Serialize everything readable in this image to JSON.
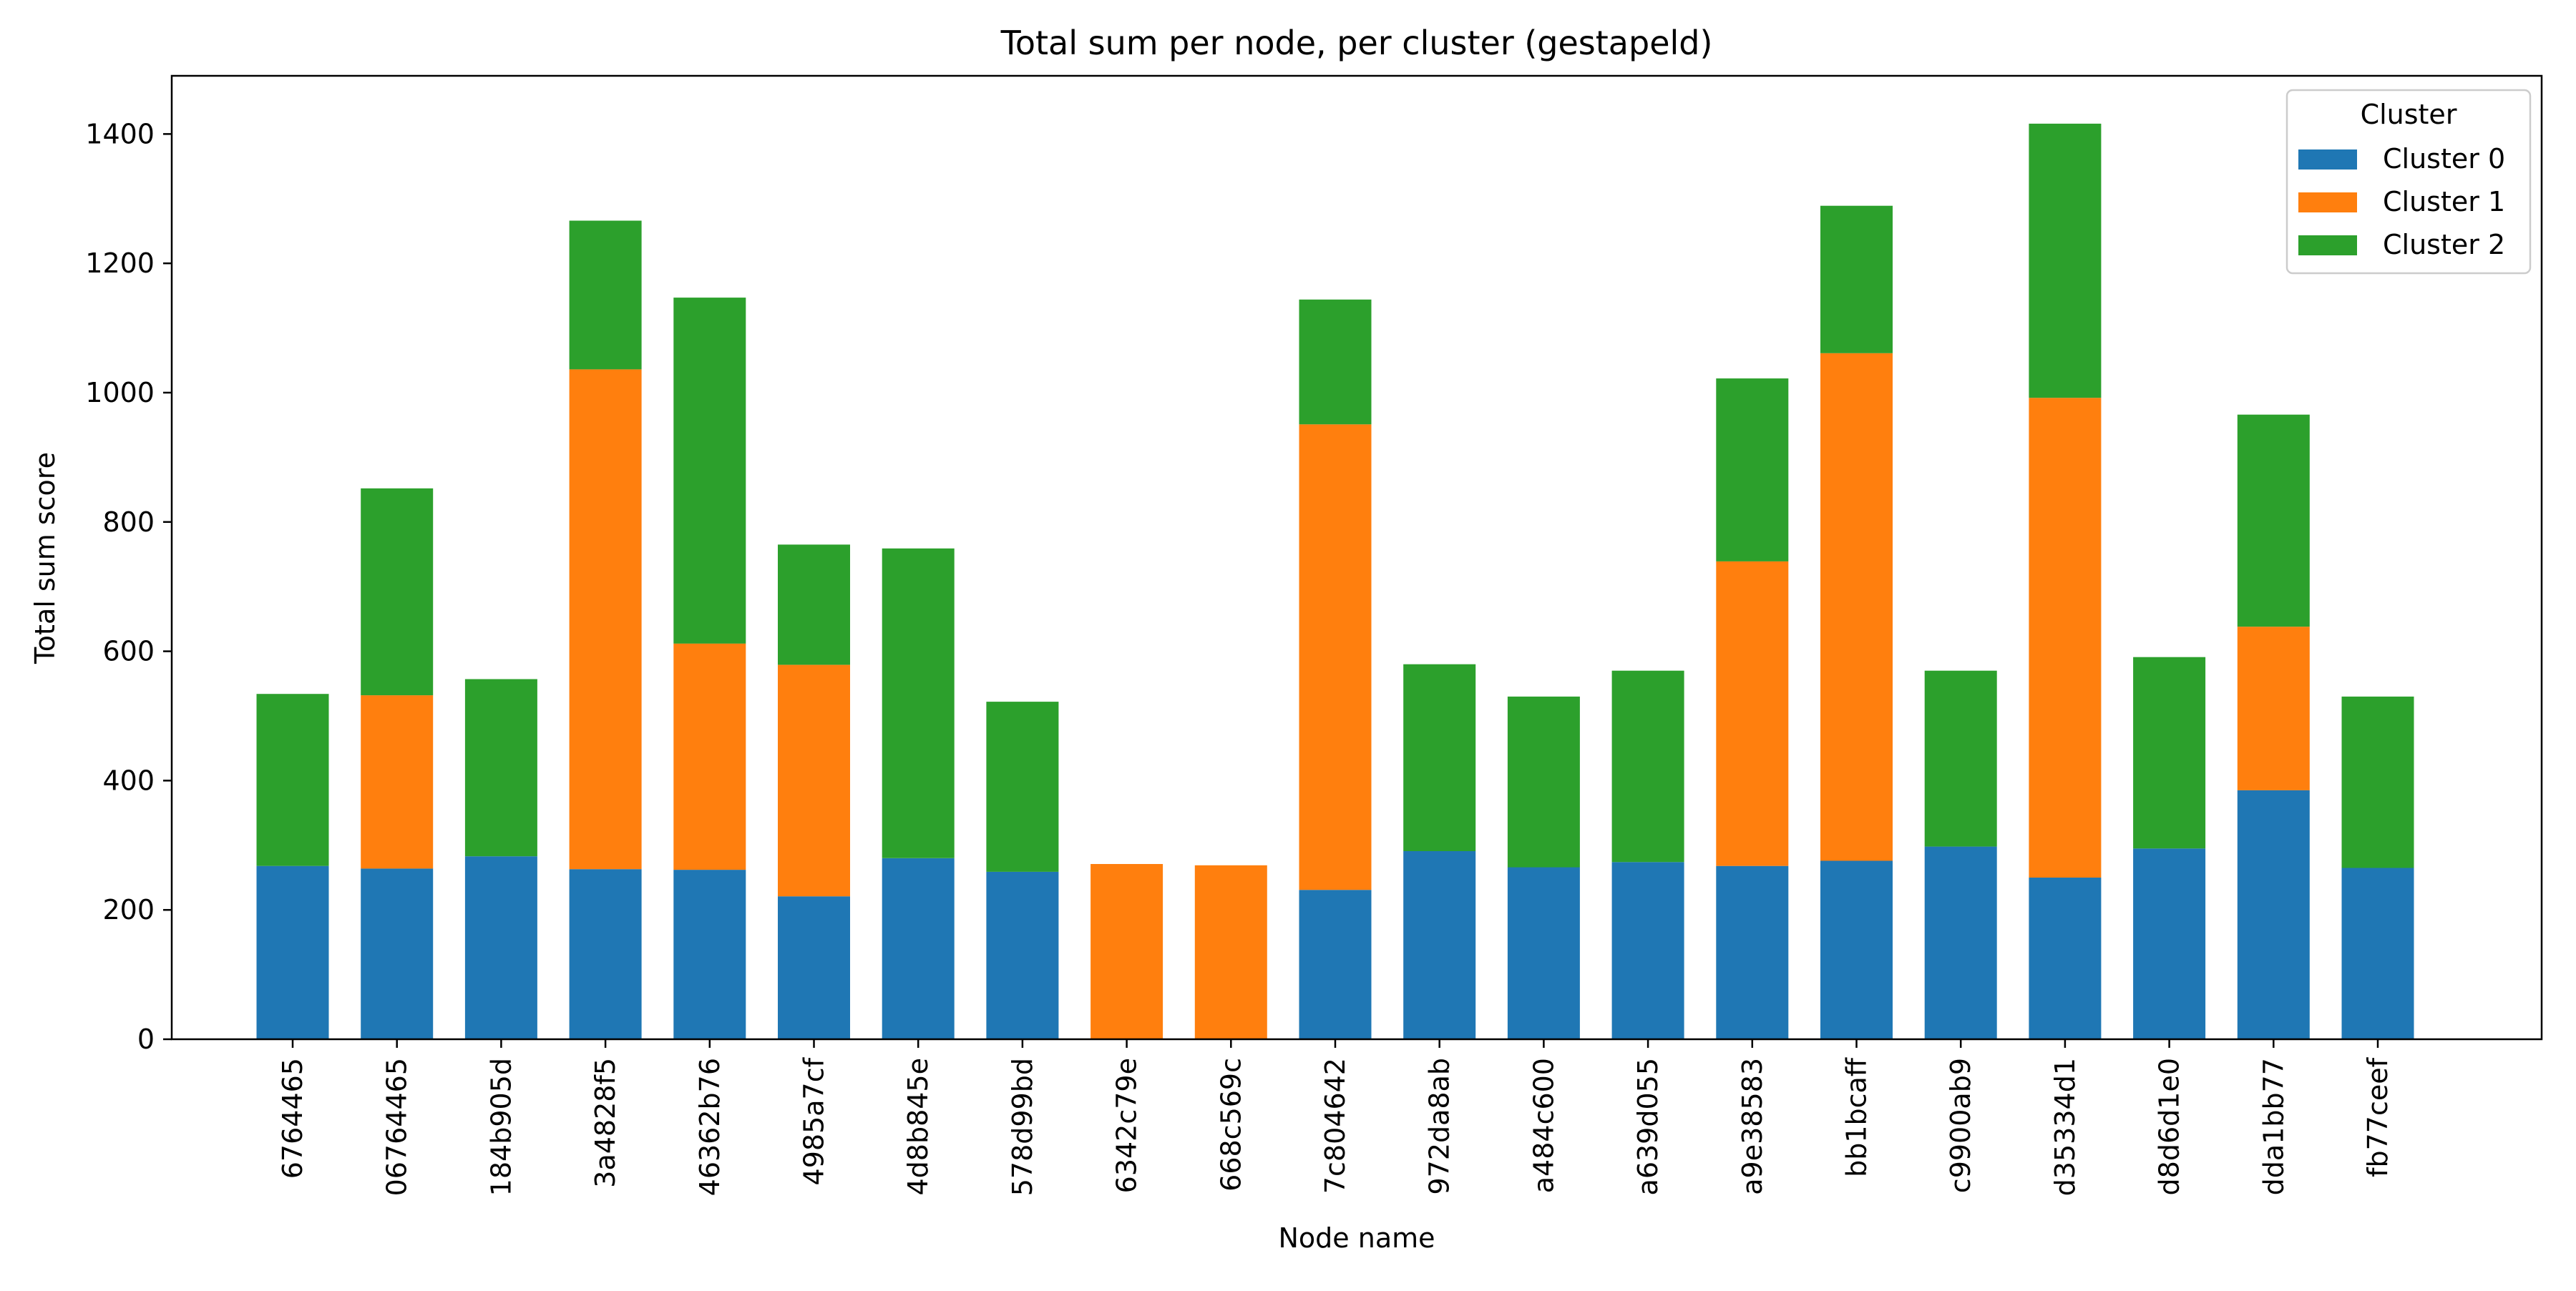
{
  "chart_data": {
    "type": "bar",
    "stacked": true,
    "title": "Total sum per node, per cluster (gestapeld)",
    "xlabel": "Node name",
    "ylabel": "Total sum score",
    "ylim": [
      0,
      1490
    ],
    "yticks": [
      0,
      200,
      400,
      600,
      800,
      1000,
      1200,
      1400
    ],
    "grid": false,
    "legend": {
      "title": "Cluster",
      "position": "top-right"
    },
    "categories": [
      "6764465",
      "06764465",
      "184b905d",
      "3a4828f5",
      "46362b76",
      "4985a7cf",
      "4d8b845e",
      "578d99bd",
      "6342c79e",
      "668c569c",
      "7c804642",
      "972da8ab",
      "a484c600",
      "a639d055",
      "a9e38583",
      "bb1bcaff",
      "c9900ab9",
      "d35334d1",
      "d8d6d1e0",
      "dda1bb77",
      "fb77ceef"
    ],
    "series": [
      {
        "name": "Cluster 0",
        "color": "#1f77b4",
        "values": [
          268,
          264,
          283,
          263,
          262,
          221,
          280,
          259,
          0,
          0,
          231,
          291,
          266,
          274,
          268,
          276,
          298,
          250,
          295,
          385,
          265
        ]
      },
      {
        "name": "Cluster 1",
        "color": "#ff7f0e",
        "values": [
          0,
          268,
          0,
          773,
          350,
          358,
          0,
          0,
          271,
          269,
          720,
          0,
          0,
          0,
          471,
          785,
          0,
          742,
          0,
          253,
          0
        ]
      },
      {
        "name": "Cluster 2",
        "color": "#2ca02c",
        "values": [
          266,
          320,
          274,
          230,
          535,
          186,
          479,
          263,
          0,
          0,
          193,
          289,
          264,
          296,
          283,
          228,
          272,
          424,
          296,
          328,
          265
        ]
      }
    ]
  }
}
